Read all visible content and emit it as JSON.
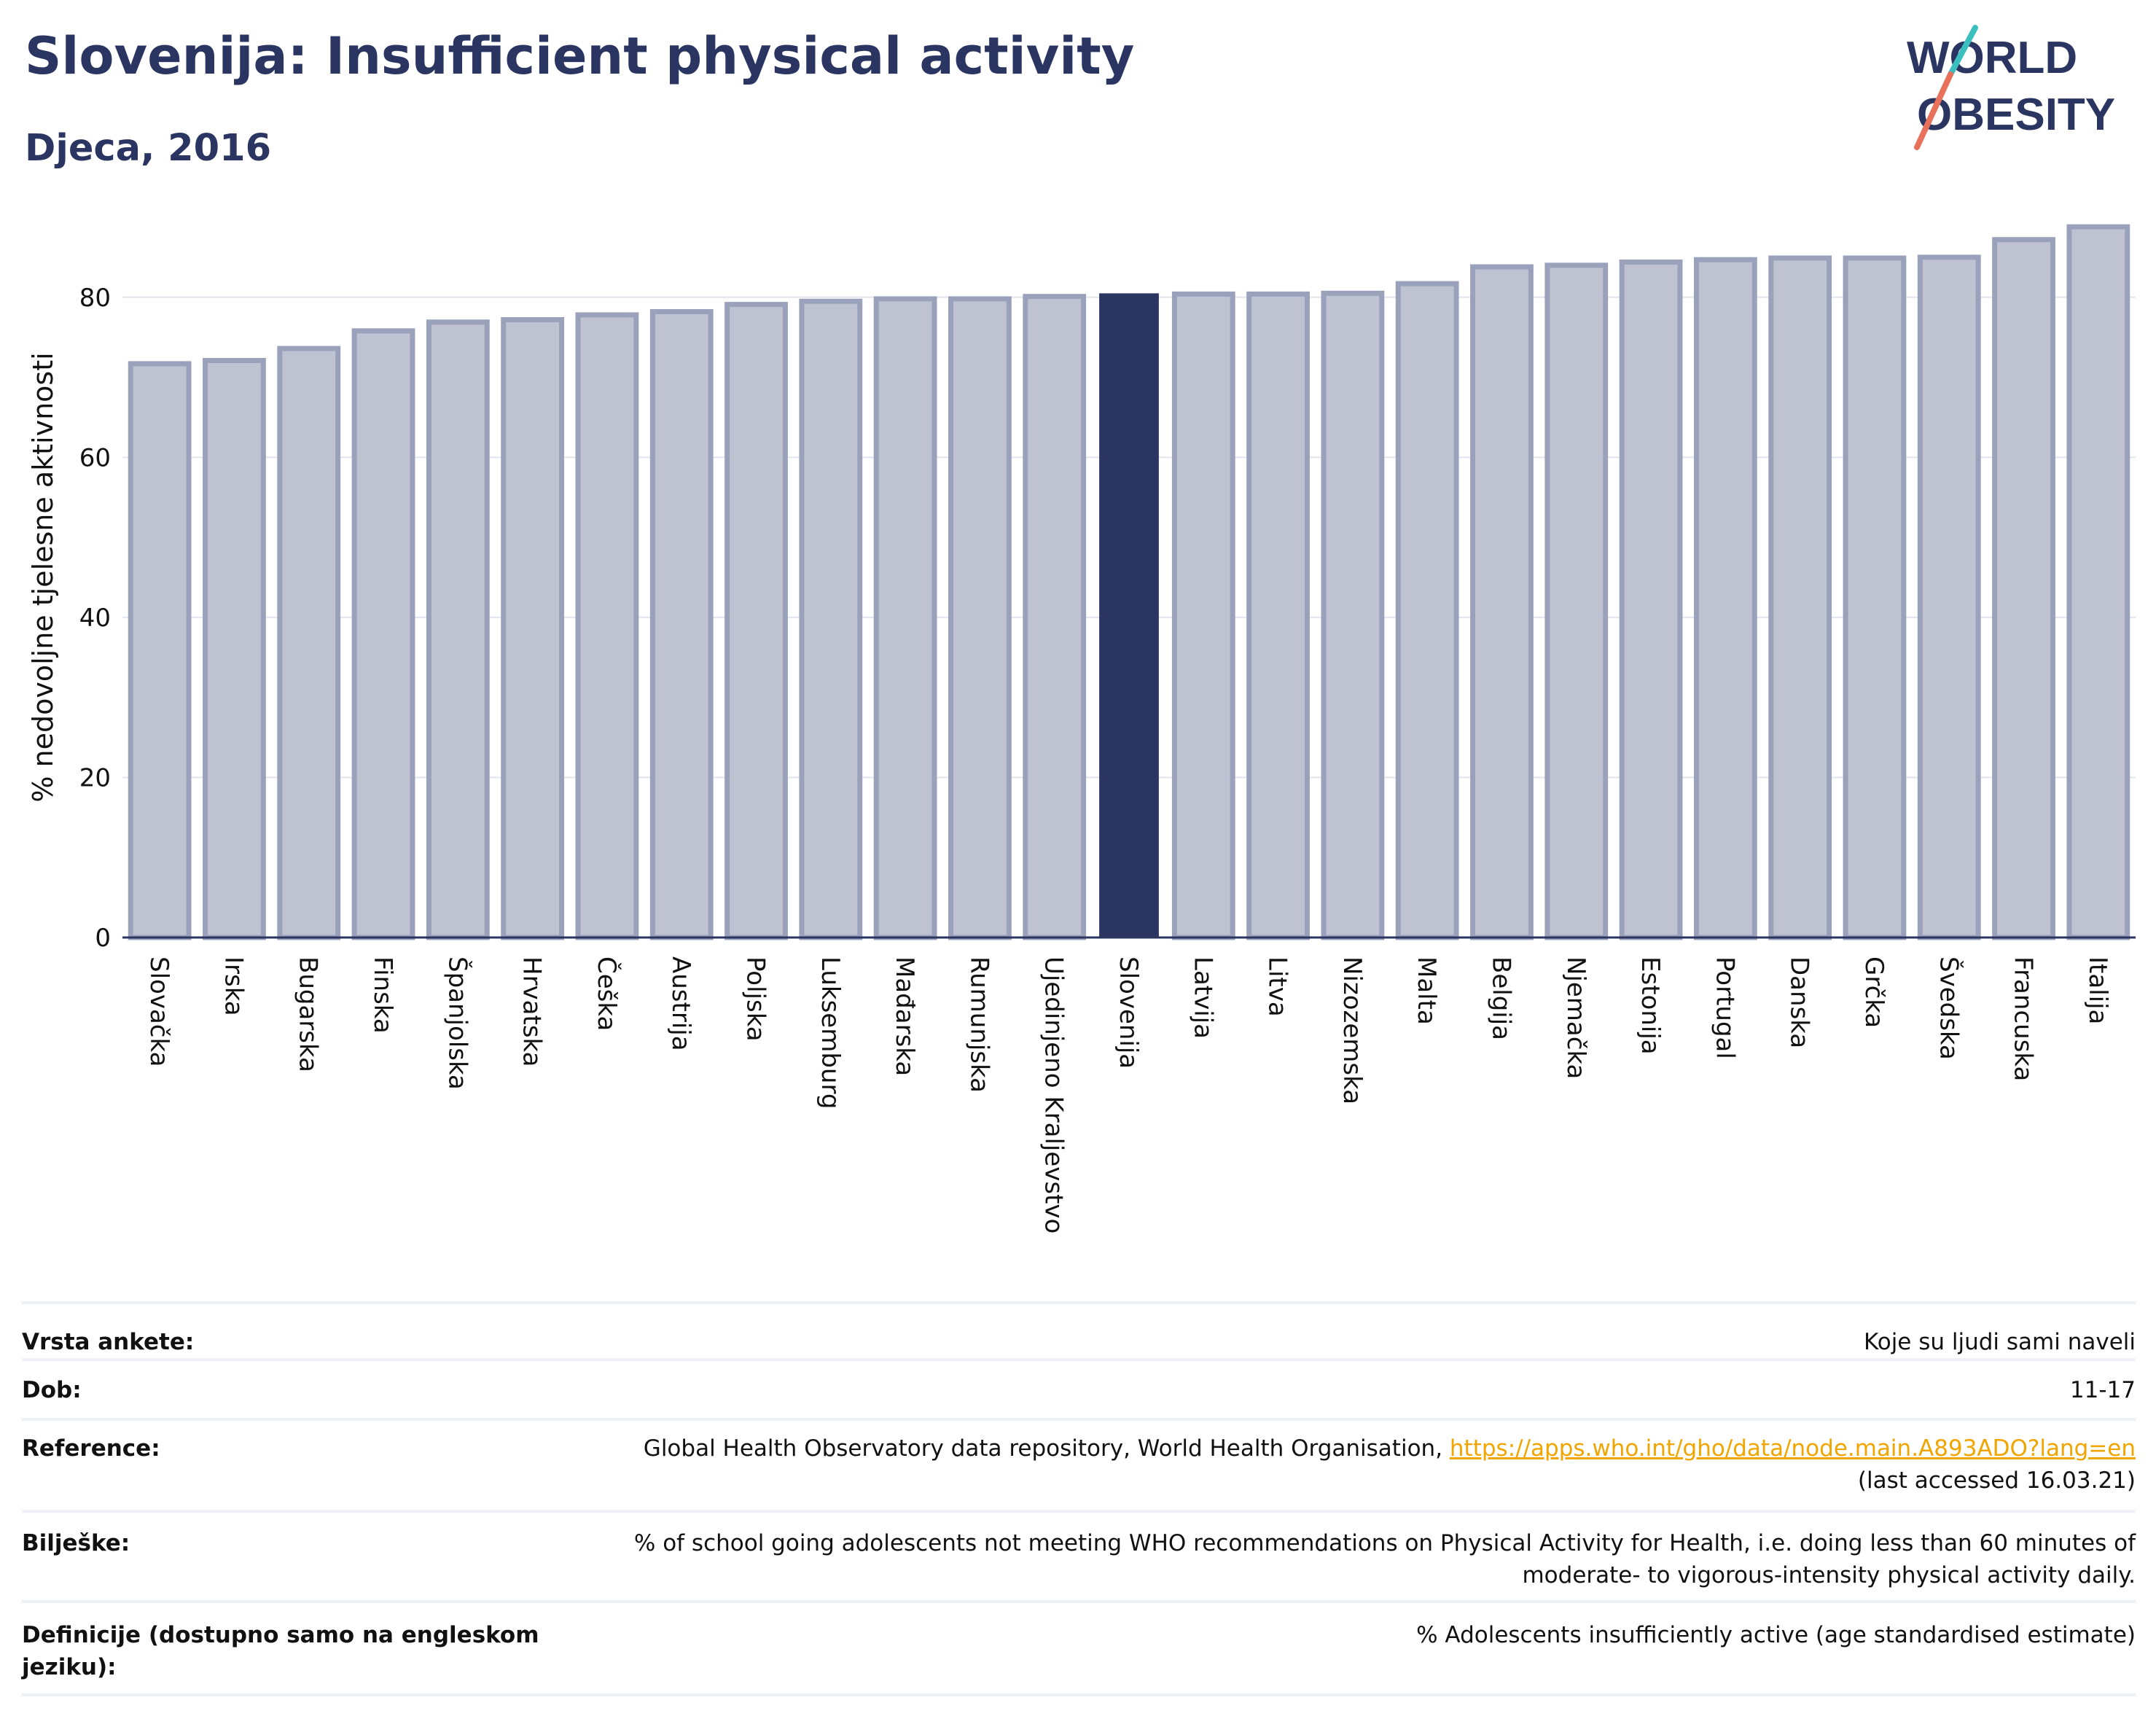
{
  "header": {
    "title": "Slovenija: Insufficient physical activity",
    "subtitle": "Djeca, 2016"
  },
  "logo": {
    "line1": "WORLD",
    "line2": "OBESITY"
  },
  "colors": {
    "bar": "#bfc3d1",
    "bar_stroke": "#9aa1bb",
    "highlight": "#2a3561",
    "text": "#2a3561"
  },
  "chart_data": {
    "type": "bar",
    "ylabel": "% nedovoljne tjelesne aktivnosti",
    "ylim": [
      0,
      90
    ],
    "yticks": [
      0,
      20,
      40,
      60,
      80
    ],
    "grid": true,
    "highlight": "Slovenija",
    "categories": [
      "Slovačka",
      "Irska",
      "Bugarska",
      "Finska",
      "Španjolska",
      "Hrvatska",
      "Češka",
      "Austrija",
      "Poljska",
      "Luksemburg",
      "Mađarska",
      "Rumunjska",
      "Ujedinjeno Kraljevstvo",
      "Slovenija",
      "Latvija",
      "Litva",
      "Nizozemska",
      "Malta",
      "Belgija",
      "Njemačka",
      "Estonija",
      "Portugal",
      "Danska",
      "Grčka",
      "Švedska",
      "Francuska",
      "Italija"
    ],
    "values": [
      71.7,
      72.1,
      73.6,
      75.8,
      76.9,
      77.2,
      77.8,
      78.2,
      79.1,
      79.5,
      79.8,
      79.8,
      80.1,
      80.4,
      80.4,
      80.4,
      80.5,
      81.7,
      83.8,
      84.0,
      84.4,
      84.7,
      84.9,
      84.9,
      85.0,
      87.2,
      88.8
    ]
  },
  "info": {
    "rows": [
      {
        "label": "Vrsta ankete:",
        "value": "Koje su ljudi sami naveli"
      },
      {
        "label": "Dob:",
        "value": "11-17"
      },
      {
        "label": "Reference:",
        "value": "Global Health Observatory data repository, World Health Organisation,",
        "link": "https://apps.who.int/gho/data/node.main.A893ADO?lang=en",
        "value2": "(last accessed 16.03.21)"
      },
      {
        "label": "Bilješke:",
        "value": "% of school going adolescents not meeting WHO recommendations on Physical Activity for Health, i.e. doing less than 60 minutes of",
        "value2": "moderate- to vigorous-intensity physical activity daily."
      },
      {
        "label": "Definicije (dostupno samo na engleskom jeziku):",
        "value": "% Adolescents insufficiently active (age standardised estimate)"
      }
    ]
  }
}
